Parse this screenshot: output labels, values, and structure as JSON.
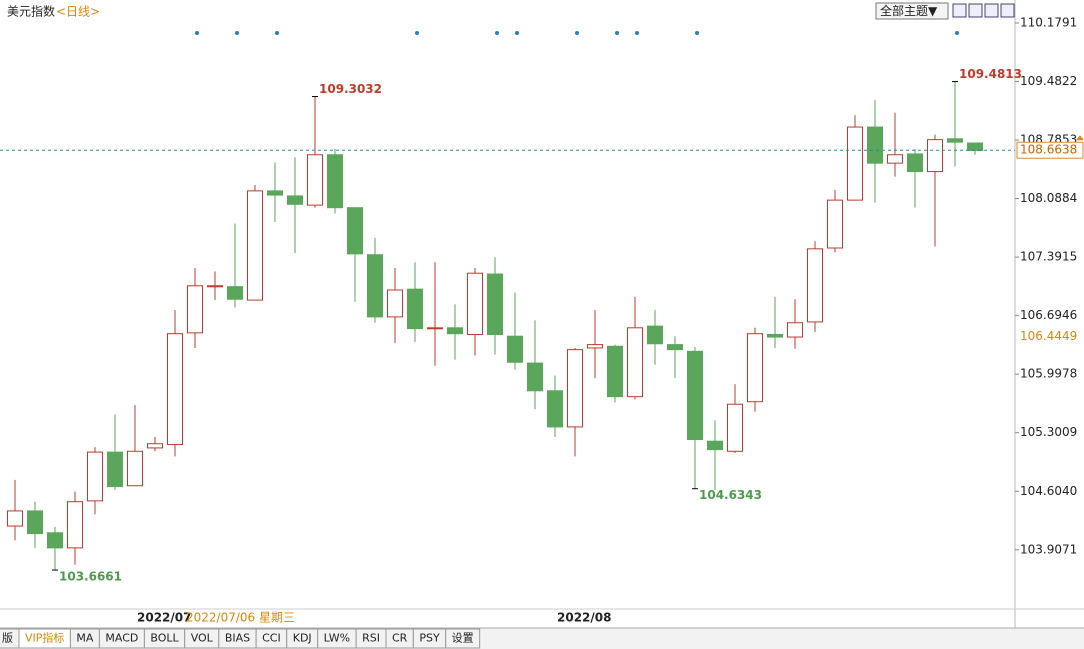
{
  "header": {
    "title": "美元指数",
    "period": "<日线>",
    "theme_button": "全部主题▼"
  },
  "chart_data": {
    "type": "candlestick",
    "ylim": [
      103.2,
      110.4
    ],
    "yticks": [
      110.1791,
      109.4822,
      108.7853,
      108.0884,
      107.3915,
      106.6946,
      105.9978,
      105.3009,
      {
        "value": 104.604,
        "label": "104.6040"
      },
      103.9071
    ],
    "grid": false,
    "up_color": "#c0392b",
    "down_color": "#5aa65a",
    "open": [
      104.19,
      104.37,
      104.11,
      103.93,
      104.49,
      105.07,
      104.67,
      105.12,
      105.16,
      106.49,
      107.04,
      107.04,
      106.88,
      108.18,
      108.12,
      108.01,
      108.61,
      107.98,
      107.42,
      106.68,
      107.01,
      106.54,
      106.55,
      106.47,
      107.19,
      106.45,
      106.13,
      105.8,
      105.37,
      106.31,
      106.33,
      105.73,
      106.57,
      106.35,
      106.27,
      105.2,
      105.08,
      105.67,
      106.47,
      106.44,
      106.62,
      107.5,
      108.07,
      108.94,
      108.51,
      108.62,
      108.41,
      108.8,
      108.75
    ],
    "high": [
      104.74,
      104.48,
      104.18,
      104.6,
      105.13,
      105.52,
      105.63,
      105.25,
      106.76,
      107.26,
      107.22,
      107.79,
      108.25,
      108.52,
      108.58,
      109.3032,
      108.68,
      107.98,
      107.62,
      107.26,
      107.33,
      107.33,
      106.83,
      107.26,
      107.39,
      106.97,
      106.64,
      105.98,
      106.31,
      106.76,
      106.35,
      106.92,
      106.76,
      106.45,
      106.32,
      105.45,
      105.88,
      106.55,
      106.92,
      106.89,
      107.58,
      108.19,
      109.08,
      109.26,
      109.11,
      108.68,
      108.85,
      109.4813,
      108.75
    ],
    "low": [
      104.02,
      103.93,
      103.6661,
      103.73,
      104.33,
      104.62,
      104.67,
      105.08,
      105.02,
      106.31,
      106.88,
      106.79,
      106.88,
      107.81,
      107.44,
      107.98,
      107.91,
      106.86,
      106.61,
      106.37,
      106.38,
      106.1,
      106.17,
      106.22,
      106.23,
      106.05,
      105.58,
      105.25,
      105.02,
      105.95,
      105.66,
      105.7,
      106.11,
      105.95,
      104.6343,
      104.62,
      105.06,
      105.55,
      106.31,
      106.3,
      106.5,
      107.45,
      108.07,
      108.04,
      108.35,
      107.98,
      107.52,
      108.47,
      108.61
    ],
    "close": [
      104.37,
      104.1,
      103.93,
      104.48,
      105.07,
      104.66,
      105.08,
      105.17,
      106.48,
      107.05,
      107.05,
      106.89,
      108.18,
      108.13,
      108.02,
      108.61,
      107.98,
      107.43,
      106.68,
      107.0,
      106.54,
      106.55,
      106.48,
      107.2,
      106.47,
      106.14,
      105.8,
      105.37,
      106.29,
      106.35,
      105.73,
      106.55,
      106.36,
      106.29,
      105.22,
      105.1,
      105.64,
      106.48,
      106.44,
      106.61,
      107.49,
      108.07,
      108.94,
      108.51,
      108.61,
      108.41,
      108.79,
      108.76,
      108.66
    ],
    "annotations": [
      {
        "index": 15,
        "text": "109.3032",
        "kind": "high"
      },
      {
        "index": 2,
        "text": "103.6661",
        "kind": "low"
      },
      {
        "index": 34,
        "text": "104.6343",
        "kind": "low"
      },
      {
        "index": 47,
        "text": "109.4813",
        "kind": "high"
      }
    ],
    "last_price": {
      "value": 108.6638,
      "label": "108.6638"
    },
    "ref_price": 106.4449,
    "x_labels": [
      {
        "index": 6,
        "label": "2022/07"
      },
      {
        "index": 27,
        "label": "2022/08"
      }
    ],
    "crosshair_date": "2022/07/06 星期三"
  },
  "tabs": [
    "版",
    "VIP指标",
    "MA",
    "MACD",
    "BOLL",
    "VOL",
    "BIAS",
    "CCI",
    "KDJ",
    "LW%",
    "RSI",
    "CR",
    "PSY",
    "设置"
  ]
}
